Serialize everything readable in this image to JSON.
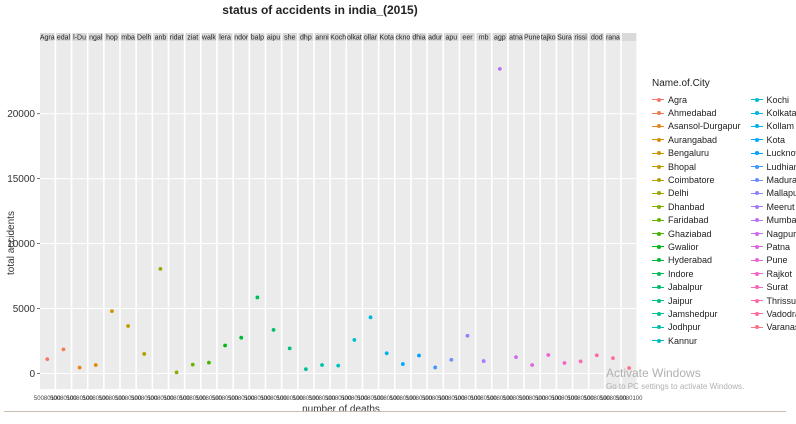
{
  "chart_data": {
    "type": "scatter",
    "title": "status of accidents in india_(2015)",
    "xlabel": "number of deaths",
    "ylabel": "total accidents",
    "ylim": [
      -1200,
      25600
    ],
    "yticks": [
      0,
      5000,
      10000,
      15000,
      20000
    ],
    "legend_title": "Name.of.City",
    "legend_position": "right",
    "facet_labels": [
      "Agra",
      "Ahmedabad",
      "Asansol-Durgapur",
      "Aurangabad",
      "Bengaluru",
      "Bhopal",
      "Coimbatore",
      "Delhi",
      "Dhanbad",
      "Faridabad",
      "Ghaziabad",
      "Gwalior",
      "Hyderabad",
      "Indore",
      "Jabalpur",
      "Jaipur",
      "Jamshedpur",
      "Jodhpur",
      "Kannur",
      "Kochi",
      "Kolkata",
      "Kollam",
      "Kota",
      "Lucknow",
      "Ludhiana",
      "Madurai",
      "Mallapuram",
      "Meerut",
      "Mumbai",
      "Nagpur",
      "Patna",
      "Pune",
      "Rajkot",
      "Surat",
      "Thrissur",
      "Vadodra",
      "Varanasi"
    ],
    "facet_strip_text": [
      "Agra",
      "edal",
      "l-Du",
      "ngal",
      "hop",
      "mba",
      "Delh",
      "anb",
      "ridat",
      "ziat",
      "walk",
      "lera",
      "ndor",
      "balp",
      "aipu",
      "she",
      "dhp",
      "anni",
      "Koch",
      "olkat",
      "ollar",
      "Kota",
      "ckno",
      "dhia",
      "adur",
      "apu",
      "eer",
      "mb",
      "agp",
      "atna",
      "Pune",
      "tajko",
      "Sura",
      "rissi",
      "dod",
      "rana"
    ],
    "x_tick_text": "50080100",
    "series": [
      {
        "name": "Agra",
        "color": "#F8766D",
        "values": [
          1100
        ]
      },
      {
        "name": "Ahmedabad",
        "color": "#F27D52",
        "values": [
          1850
        ]
      },
      {
        "name": "Asansol-Durgapur",
        "color": "#E7861B",
        "values": [
          450
        ]
      },
      {
        "name": "Aurangabad",
        "color": "#DB8E00",
        "values": [
          650
        ]
      },
      {
        "name": "Bengaluru",
        "color": "#CF9400",
        "values": [
          4800
        ]
      },
      {
        "name": "Bhopal",
        "color": "#C09B00",
        "values": [
          3650
        ]
      },
      {
        "name": "Coimbatore",
        "color": "#AFA100",
        "values": [
          1500
        ]
      },
      {
        "name": "Delhi",
        "color": "#9CA700",
        "values": [
          8050
        ]
      },
      {
        "name": "Dhanbad",
        "color": "#86AC00",
        "values": [
          80
        ]
      },
      {
        "name": "Faridabad",
        "color": "#6BB100",
        "values": [
          680
        ]
      },
      {
        "name": "Ghaziabad",
        "color": "#44B400",
        "values": [
          830
        ]
      },
      {
        "name": "Gwalior",
        "color": "#00B813",
        "values": [
          2150
        ]
      },
      {
        "name": "Hyderabad",
        "color": "#00BA38",
        "values": [
          2750
        ]
      },
      {
        "name": "Indore",
        "color": "#00BC56",
        "values": [
          5850
        ]
      },
      {
        "name": "Jabalpur",
        "color": "#00BE6D",
        "values": [
          3350
        ]
      },
      {
        "name": "Jaipur",
        "color": "#00C083",
        "values": [
          1930
        ]
      },
      {
        "name": "Jamshedpur",
        "color": "#00C096",
        "values": [
          330
        ]
      },
      {
        "name": "Jodhpur",
        "color": "#00C0A9",
        "values": [
          650
        ]
      },
      {
        "name": "Kannur",
        "color": "#00BFBB",
        "values": [
          600
        ]
      },
      {
        "name": "Kochi",
        "color": "#00BDCC",
        "values": [
          2580
        ]
      },
      {
        "name": "Kolkata",
        "color": "#00B8DC",
        "values": [
          4320
        ]
      },
      {
        "name": "Kollam",
        "color": "#00B2EB",
        "values": [
          1550
        ]
      },
      {
        "name": "Kota",
        "color": "#00ABFD",
        "values": [
          720
        ]
      },
      {
        "name": "Lucknow",
        "color": "#00A2FF",
        "values": [
          1380
        ]
      },
      {
        "name": "Ludhiana",
        "color": "#3E98FF",
        "values": [
          460
        ]
      },
      {
        "name": "Madurai",
        "color": "#6D8EFF",
        "values": [
          1050
        ]
      },
      {
        "name": "Mallapuram",
        "color": "#8E83FF",
        "values": [
          2900
        ]
      },
      {
        "name": "Meerut",
        "color": "#A77AFF",
        "values": [
          950
        ]
      },
      {
        "name": "Mumbai",
        "color": "#BB72F8",
        "values": [
          23450
        ]
      },
      {
        "name": "Nagpur",
        "color": "#CE6BF0",
        "values": [
          1250
        ]
      },
      {
        "name": "Patna",
        "color": "#DC66E4",
        "values": [
          650
        ]
      },
      {
        "name": "Pune",
        "color": "#E864D8",
        "values": [
          1420
        ]
      },
      {
        "name": "Rajkot",
        "color": "#F265CA",
        "values": [
          800
        ]
      },
      {
        "name": "Surat",
        "color": "#F967BB",
        "values": [
          930
        ]
      },
      {
        "name": "Thrissur",
        "color": "#FD6AAA",
        "values": [
          1400
        ]
      },
      {
        "name": "Vadodra",
        "color": "#FF6E98",
        "values": [
          1180
        ]
      },
      {
        "name": "Varanasi",
        "color": "#FE7385",
        "values": [
          420
        ]
      }
    ]
  },
  "watermark": {
    "title": "Activate Windows",
    "subtitle": "Go to PC settings to activate Windows."
  }
}
